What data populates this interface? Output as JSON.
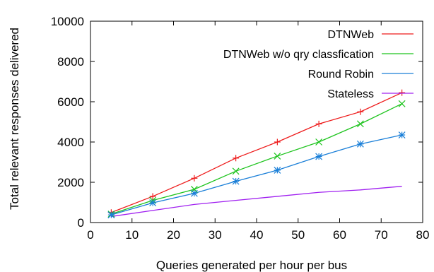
{
  "chart_data": {
    "type": "line",
    "xlabel": "Queries generated per hour per bus",
    "ylabel": "Total relevant responses delivered",
    "xlim": [
      0,
      80
    ],
    "ylim": [
      0,
      10000
    ],
    "xticks": [
      0,
      10,
      20,
      30,
      40,
      50,
      60,
      70,
      80
    ],
    "yticks": [
      0,
      2000,
      4000,
      6000,
      8000,
      10000
    ],
    "grid": false,
    "legend_position": "top-right",
    "x": [
      5,
      15,
      25,
      35,
      45,
      55,
      65,
      75
    ],
    "series": [
      {
        "name": "DTNWeb",
        "color": "#ee1c1c",
        "values": [
          500,
          1300,
          2200,
          3200,
          4000,
          4900,
          5500,
          6450
        ],
        "marker": "plus"
      },
      {
        "name": "DTNWeb w/o qry classfication",
        "color": "#1ec41e",
        "values": [
          420,
          1100,
          1650,
          2550,
          3300,
          4000,
          4900,
          5900
        ],
        "marker": "x"
      },
      {
        "name": "Round Robin",
        "color": "#1a7fd8",
        "values": [
          380,
          980,
          1450,
          2050,
          2600,
          3280,
          3900,
          4350
        ],
        "marker": "star"
      },
      {
        "name": "Stateless",
        "color": "#a020f0",
        "values": [
          300,
          600,
          900,
          1100,
          1300,
          1500,
          1620,
          1800
        ],
        "marker": "none"
      }
    ]
  }
}
